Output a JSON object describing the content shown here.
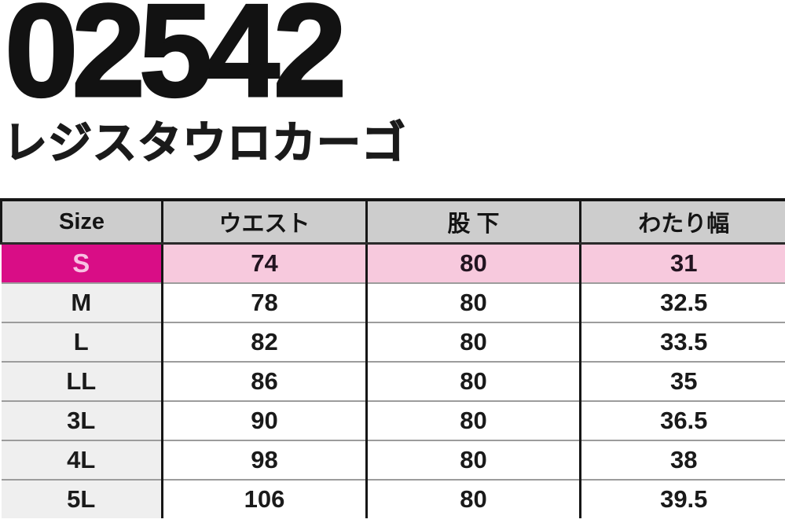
{
  "page": {
    "product_code": "02542",
    "product_name": "レジスタウロカーゴ"
  },
  "size_chart": {
    "columns": [
      "Size",
      "ウエスト",
      "股 下",
      "わたり幅"
    ],
    "rows": [
      {
        "size": "S",
        "waist": "74",
        "inseam": "80",
        "thigh_width": "31",
        "highlighted": true
      },
      {
        "size": "M",
        "waist": "78",
        "inseam": "80",
        "thigh_width": "32.5",
        "highlighted": false
      },
      {
        "size": "L",
        "waist": "82",
        "inseam": "80",
        "thigh_width": "33.5",
        "highlighted": false
      },
      {
        "size": "LL",
        "waist": "86",
        "inseam": "80",
        "thigh_width": "35",
        "highlighted": false
      },
      {
        "size": "3L",
        "waist": "90",
        "inseam": "80",
        "thigh_width": "36.5",
        "highlighted": false
      },
      {
        "size": "4L",
        "waist": "98",
        "inseam": "80",
        "thigh_width": "38",
        "highlighted": false
      },
      {
        "size": "5L",
        "waist": "106",
        "inseam": "80",
        "thigh_width": "39.5",
        "highlighted": false
      }
    ]
  },
  "colors": {
    "highlight_row_magenta": "#d90d86",
    "highlight_row_pink": "#f7c9dd",
    "header_gray": "#cdcdcd",
    "size_column_gray": "#efefef",
    "grid_line_black": "#161616",
    "row_separator_gray": "#9c9c9c"
  }
}
